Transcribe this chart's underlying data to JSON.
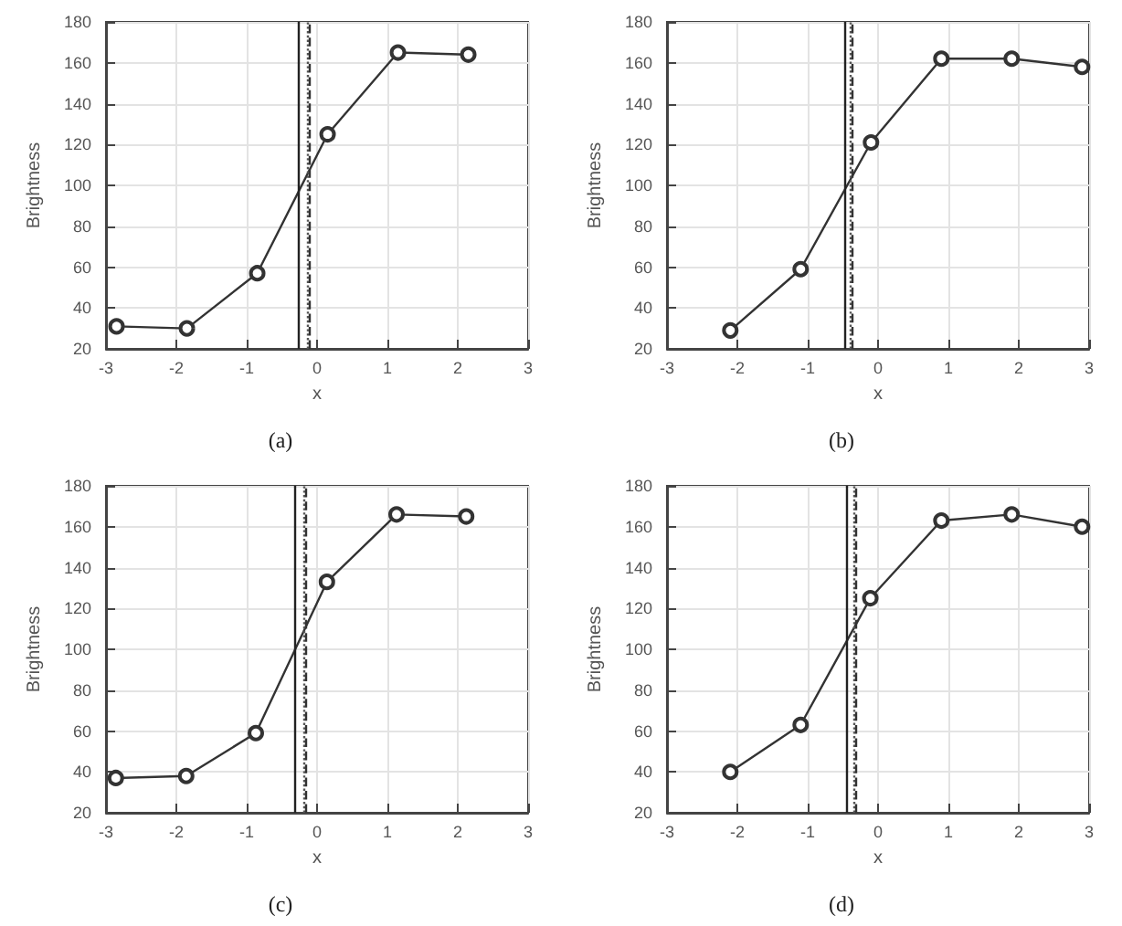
{
  "chart_data": [
    {
      "type": "line",
      "xlabel": "x",
      "ylabel": "Brightness",
      "annotations": [
        "(a)"
      ],
      "x": [
        -2.85,
        -1.85,
        -0.85,
        0.15,
        1.15,
        2.15
      ],
      "series": [
        {
          "color": "#333333",
          "values": [
            31,
            30,
            57,
            125,
            165,
            164
          ]
        }
      ],
      "xlim": [
        -3,
        3
      ],
      "xticks": [
        -3,
        -2,
        -1,
        0,
        1,
        2,
        3
      ],
      "ylim": [
        20,
        180
      ],
      "yticks": [
        20,
        40,
        60,
        80,
        100,
        120,
        140,
        160,
        180
      ],
      "grid": true,
      "marker": "circle",
      "line_style": "solid",
      "ref_lines": [
        {
          "axis": "x",
          "value": -0.26,
          "line_style": "solid",
          "color": "#222222"
        },
        {
          "axis": "x",
          "value": -0.14,
          "line_style": "dotted",
          "color": "#555555"
        },
        {
          "axis": "x",
          "value": -0.1,
          "line_style": "dashed",
          "color": "#333333"
        }
      ]
    },
    {
      "type": "line",
      "xlabel": "x",
      "ylabel": "Brightness",
      "annotations": [
        "(b)"
      ],
      "x": [
        -2.1,
        -1.1,
        -0.1,
        0.9,
        1.9,
        2.9
      ],
      "series": [
        {
          "color": "#333333",
          "values": [
            29,
            59,
            121,
            162,
            162,
            158
          ]
        }
      ],
      "xlim": [
        -3,
        3
      ],
      "xticks": [
        -3,
        -2,
        -1,
        0,
        1,
        2,
        3
      ],
      "ylim": [
        20,
        180
      ],
      "yticks": [
        20,
        40,
        60,
        80,
        100,
        120,
        140,
        160,
        180
      ],
      "grid": true,
      "marker": "circle",
      "line_style": "solid",
      "ref_lines": [
        {
          "axis": "x",
          "value": -0.48,
          "line_style": "solid",
          "color": "#222222"
        },
        {
          "axis": "x",
          "value": -0.4,
          "line_style": "dotted",
          "color": "#555555"
        },
        {
          "axis": "x",
          "value": -0.36,
          "line_style": "dashed",
          "color": "#333333"
        }
      ]
    },
    {
      "type": "line",
      "xlabel": "x",
      "ylabel": "Brightness",
      "annotations": [
        "(c)"
      ],
      "x": [
        -2.86,
        -1.86,
        -0.87,
        0.14,
        1.13,
        2.12
      ],
      "series": [
        {
          "color": "#333333",
          "values": [
            37,
            38,
            59,
            133,
            166,
            165
          ]
        }
      ],
      "xlim": [
        -3,
        3
      ],
      "xticks": [
        -3,
        -2,
        -1,
        0,
        1,
        2,
        3
      ],
      "ylim": [
        20,
        180
      ],
      "yticks": [
        20,
        40,
        60,
        80,
        100,
        120,
        140,
        160,
        180
      ],
      "grid": true,
      "marker": "circle",
      "line_style": "solid",
      "ref_lines": [
        {
          "axis": "x",
          "value": -0.31,
          "line_style": "solid",
          "color": "#222222"
        },
        {
          "axis": "x",
          "value": -0.2,
          "line_style": "dotted",
          "color": "#555555"
        },
        {
          "axis": "x",
          "value": -0.17,
          "line_style": "dashed",
          "color": "#333333"
        }
      ]
    },
    {
      "type": "line",
      "xlabel": "x",
      "ylabel": "Brightness",
      "annotations": [
        "(d)"
      ],
      "x": [
        -2.1,
        -1.1,
        -0.11,
        0.9,
        1.9,
        2.9
      ],
      "series": [
        {
          "color": "#333333",
          "values": [
            40,
            63,
            125,
            163,
            166,
            160
          ]
        }
      ],
      "xlim": [
        -3,
        3
      ],
      "xticks": [
        -3,
        -2,
        -1,
        0,
        1,
        2,
        3
      ],
      "ylim": [
        20,
        180
      ],
      "yticks": [
        20,
        40,
        60,
        80,
        100,
        120,
        140,
        160,
        180
      ],
      "grid": true,
      "marker": "circle",
      "line_style": "solid",
      "ref_lines": [
        {
          "axis": "x",
          "value": -0.44,
          "line_style": "solid",
          "color": "#222222"
        },
        {
          "axis": "x",
          "value": -0.34,
          "line_style": "dotted",
          "color": "#555555"
        },
        {
          "axis": "x",
          "value": -0.31,
          "line_style": "dashed",
          "color": "#333333"
        }
      ]
    }
  ]
}
